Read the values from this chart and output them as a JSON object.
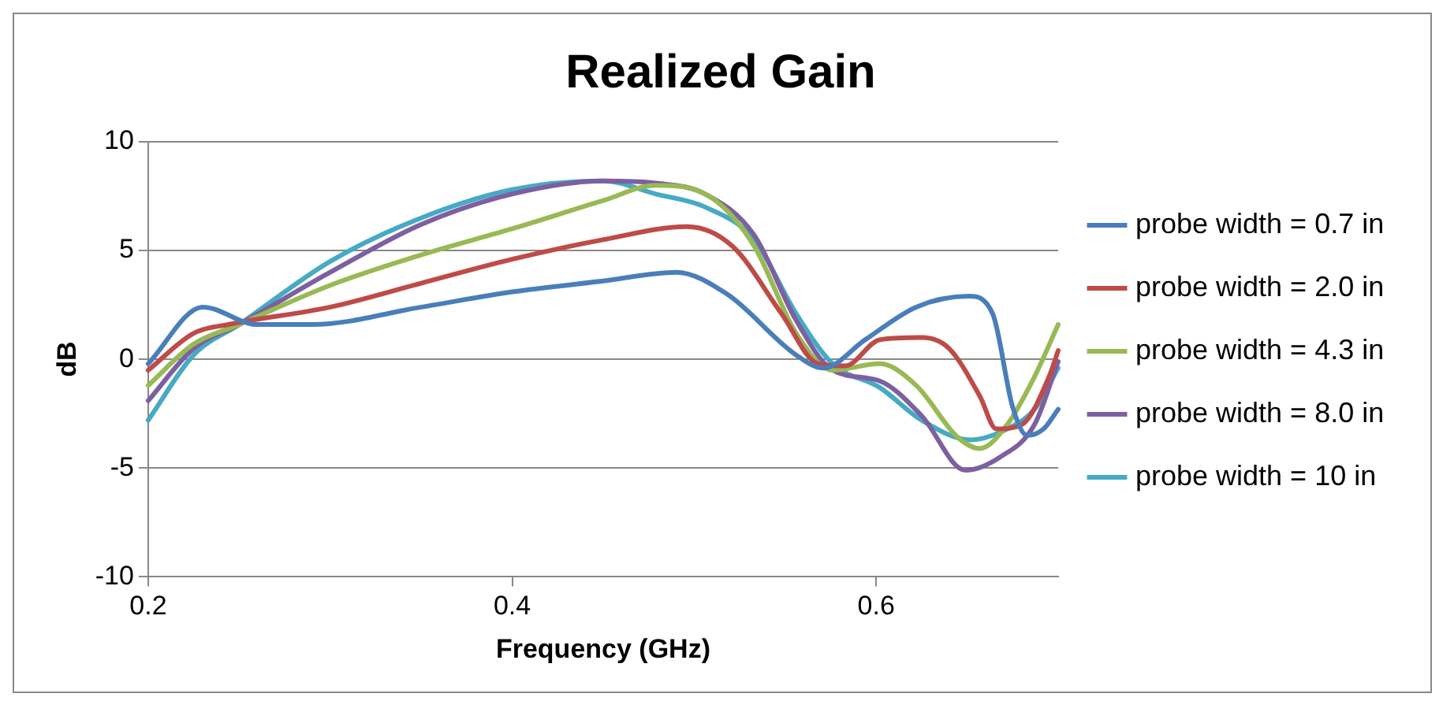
{
  "chart_data": {
    "type": "line",
    "title": "Realized Gain",
    "xlabel": "Frequency (GHz)",
    "ylabel": "dB",
    "xlim": [
      0.2,
      0.7
    ],
    "xticks": [
      0.2,
      0.4,
      0.6
    ],
    "ylim": [
      -10,
      10
    ],
    "yticks": [
      -10,
      -5,
      0,
      5,
      10
    ],
    "grid": "y",
    "legend": "right",
    "marker": "none",
    "line_style": "solid",
    "series": [
      {
        "name": "probe width = 0.7 in",
        "color": "#4a7ebb",
        "x": [
          0.2,
          0.23,
          0.26,
          0.29,
          0.35,
          0.4,
          0.45,
          0.49,
          0.518,
          0.556,
          0.571,
          0.594,
          0.622,
          0.651,
          0.664,
          0.675,
          0.683,
          0.692,
          0.7
        ],
        "values": [
          -0.2,
          2.4,
          1.6,
          1.6,
          2.4,
          3.1,
          3.6,
          4.0,
          3.0,
          0.2,
          -0.4,
          0.9,
          2.4,
          2.9,
          2.1,
          -2.2,
          -3.5,
          -3.2,
          -2.3
        ]
      },
      {
        "name": "probe width = 2.0 in",
        "color": "#be4b48",
        "x": [
          0.2,
          0.225,
          0.244,
          0.3,
          0.35,
          0.4,
          0.45,
          0.496,
          0.521,
          0.548,
          0.568,
          0.583,
          0.602,
          0.625,
          0.64,
          0.657,
          0.666,
          0.68,
          0.695,
          0.7
        ],
        "values": [
          -0.5,
          1.2,
          1.6,
          2.4,
          3.5,
          4.6,
          5.5,
          6.1,
          5.2,
          2.1,
          -0.2,
          -0.3,
          0.9,
          1.0,
          0.5,
          -1.7,
          -3.2,
          -3.0,
          -0.8,
          0.4
        ]
      },
      {
        "name": "probe width = 4.3 in",
        "color": "#98b954",
        "x": [
          0.2,
          0.225,
          0.25,
          0.3,
          0.35,
          0.4,
          0.45,
          0.479,
          0.51,
          0.533,
          0.556,
          0.576,
          0.602,
          0.622,
          0.645,
          0.657,
          0.672,
          0.687,
          0.7
        ],
        "values": [
          -1.2,
          0.7,
          1.6,
          3.4,
          4.8,
          6.0,
          7.3,
          8.0,
          7.4,
          5.2,
          1.2,
          -0.5,
          -0.2,
          -1.2,
          -3.6,
          -4.1,
          -3.0,
          -0.8,
          1.6
        ]
      },
      {
        "name": "probe width = 8.0 in",
        "color": "#7d60a0",
        "x": [
          0.2,
          0.225,
          0.25,
          0.3,
          0.35,
          0.4,
          0.45,
          0.479,
          0.506,
          0.533,
          0.556,
          0.576,
          0.602,
          0.625,
          0.649,
          0.668,
          0.687,
          0.7
        ],
        "values": [
          -1.9,
          0.5,
          1.6,
          4.0,
          6.2,
          7.6,
          8.2,
          8.1,
          7.6,
          5.7,
          1.8,
          -0.5,
          -1.0,
          -2.6,
          -5.1,
          -4.5,
          -3.0,
          -0.1
        ]
      },
      {
        "name": "probe width = 10 in",
        "color": "#46aac5",
        "x": [
          0.2,
          0.225,
          0.25,
          0.3,
          0.35,
          0.4,
          0.45,
          0.479,
          0.506,
          0.533,
          0.556,
          0.576,
          0.602,
          0.625,
          0.652,
          0.672,
          0.687,
          0.7
        ],
        "values": [
          -2.8,
          0.2,
          1.6,
          4.5,
          6.5,
          7.8,
          8.2,
          7.6,
          7.0,
          5.5,
          2.1,
          -0.2,
          -1.3,
          -2.8,
          -3.7,
          -3.2,
          -2.3,
          -0.4
        ]
      }
    ]
  }
}
